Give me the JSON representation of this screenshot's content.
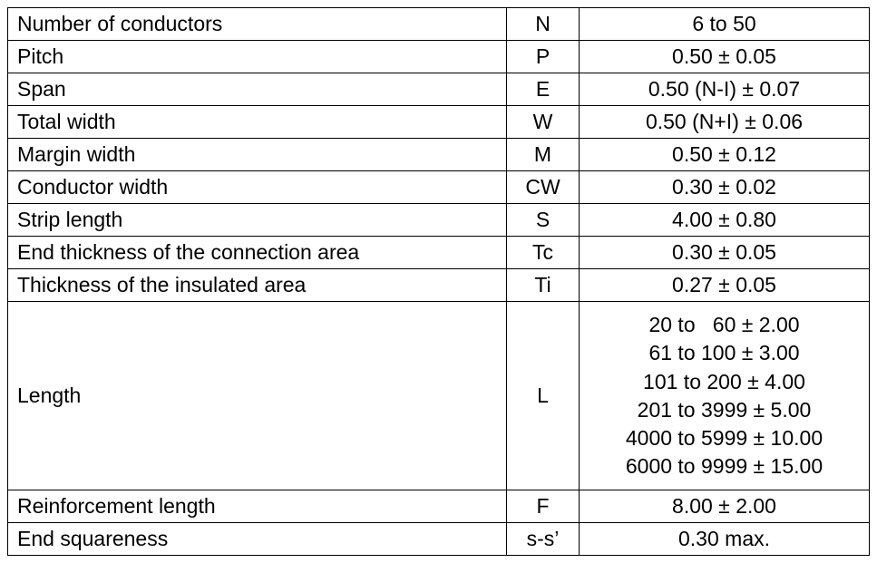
{
  "table": {
    "columns": {
      "param_width": 550,
      "symbol_width": 80,
      "value_width": 320
    },
    "styles": {
      "font_family": "Arial",
      "font_size": 23,
      "border_color": "#000000",
      "background_color": "#ffffff",
      "text_color": "#000000",
      "col1_align": "left",
      "col2_align": "center",
      "col3_align": "center"
    },
    "rows": [
      {
        "param": "Number of conductors",
        "symbol": "N",
        "value": "6 to 50"
      },
      {
        "param": "Pitch",
        "symbol": "P",
        "value": "0.50 ± 0.05"
      },
      {
        "param": "Span",
        "symbol": "E",
        "value": "0.50 (N-I) ± 0.07"
      },
      {
        "param": "Total width",
        "symbol": "W",
        "value": "0.50 (N+I) ± 0.06"
      },
      {
        "param": "Margin width",
        "symbol": "M",
        "value": "0.50 ± 0.12"
      },
      {
        "param": "Conductor width",
        "symbol": "CW",
        "value": "0.30 ± 0.02"
      },
      {
        "param": "Strip length",
        "symbol": "S",
        "value": "4.00 ± 0.80"
      },
      {
        "param": "End thickness of the connection area",
        "symbol": "Tc",
        "value": "0.30 ± 0.05"
      },
      {
        "param": "Thickness of the insulated area",
        "symbol": "Ti",
        "value": "0.27 ± 0.05"
      },
      {
        "param": "Length",
        "symbol": "L",
        "multiline": true,
        "lines": [
          "20 to   60 ± 2.00",
          "61 to 100 ± 3.00",
          "101 to 200 ± 4.00",
          "201 to 3999 ± 5.00",
          "4000 to 5999 ± 10.00",
          "6000 to 9999 ± 15.00"
        ]
      },
      {
        "param": "Reinforcement length",
        "symbol": "F",
        "value": "8.00 ± 2.00"
      },
      {
        "param": "End squareness",
        "symbol": "s-s’",
        "value": "0.30 max."
      }
    ]
  }
}
